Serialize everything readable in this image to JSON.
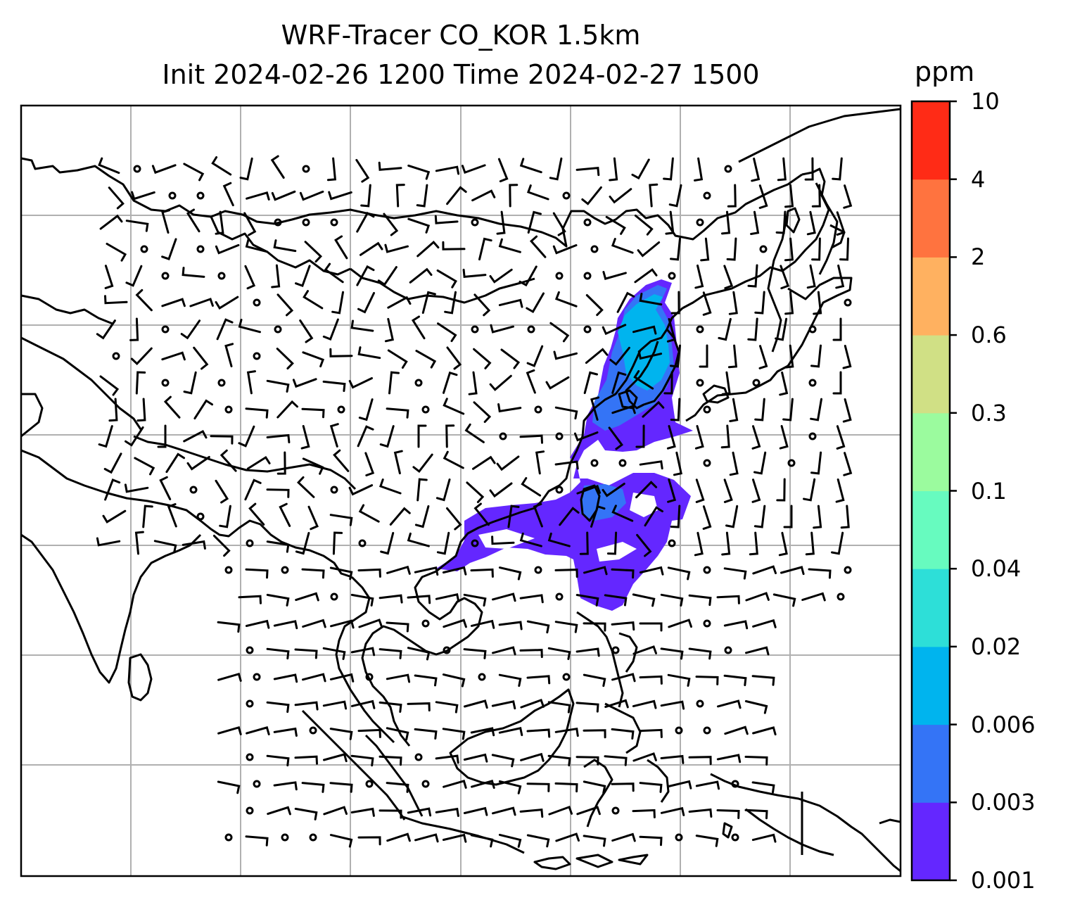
{
  "title_line1": "WRF-Tracer CO_KOR 1.5km",
  "title_line2": "Init 2024-02-26 1200 Time 2024-02-27 1500",
  "colorbar": {
    "unit": "ppm",
    "levels": [
      "0.001",
      "0.003",
      "0.006",
      "0.02",
      "0.04",
      "0.1",
      "0.3",
      "0.6",
      "2",
      "4",
      "10"
    ],
    "colors": [
      "#6427ff",
      "#3474f6",
      "#00b4ee",
      "#2ddfd8",
      "#67fbbf",
      "#9bfb9e",
      "#d0e085",
      "#ffb160",
      "#ff733f",
      "#ff2b16"
    ]
  },
  "map": {
    "projection_grid": "lat/lon gridlines",
    "gridline_color": "#b0b0b0",
    "coastline_color": "#000000",
    "plume_fill_colors": [
      "#6427ff",
      "#3474f6",
      "#00b4ee"
    ]
  }
}
